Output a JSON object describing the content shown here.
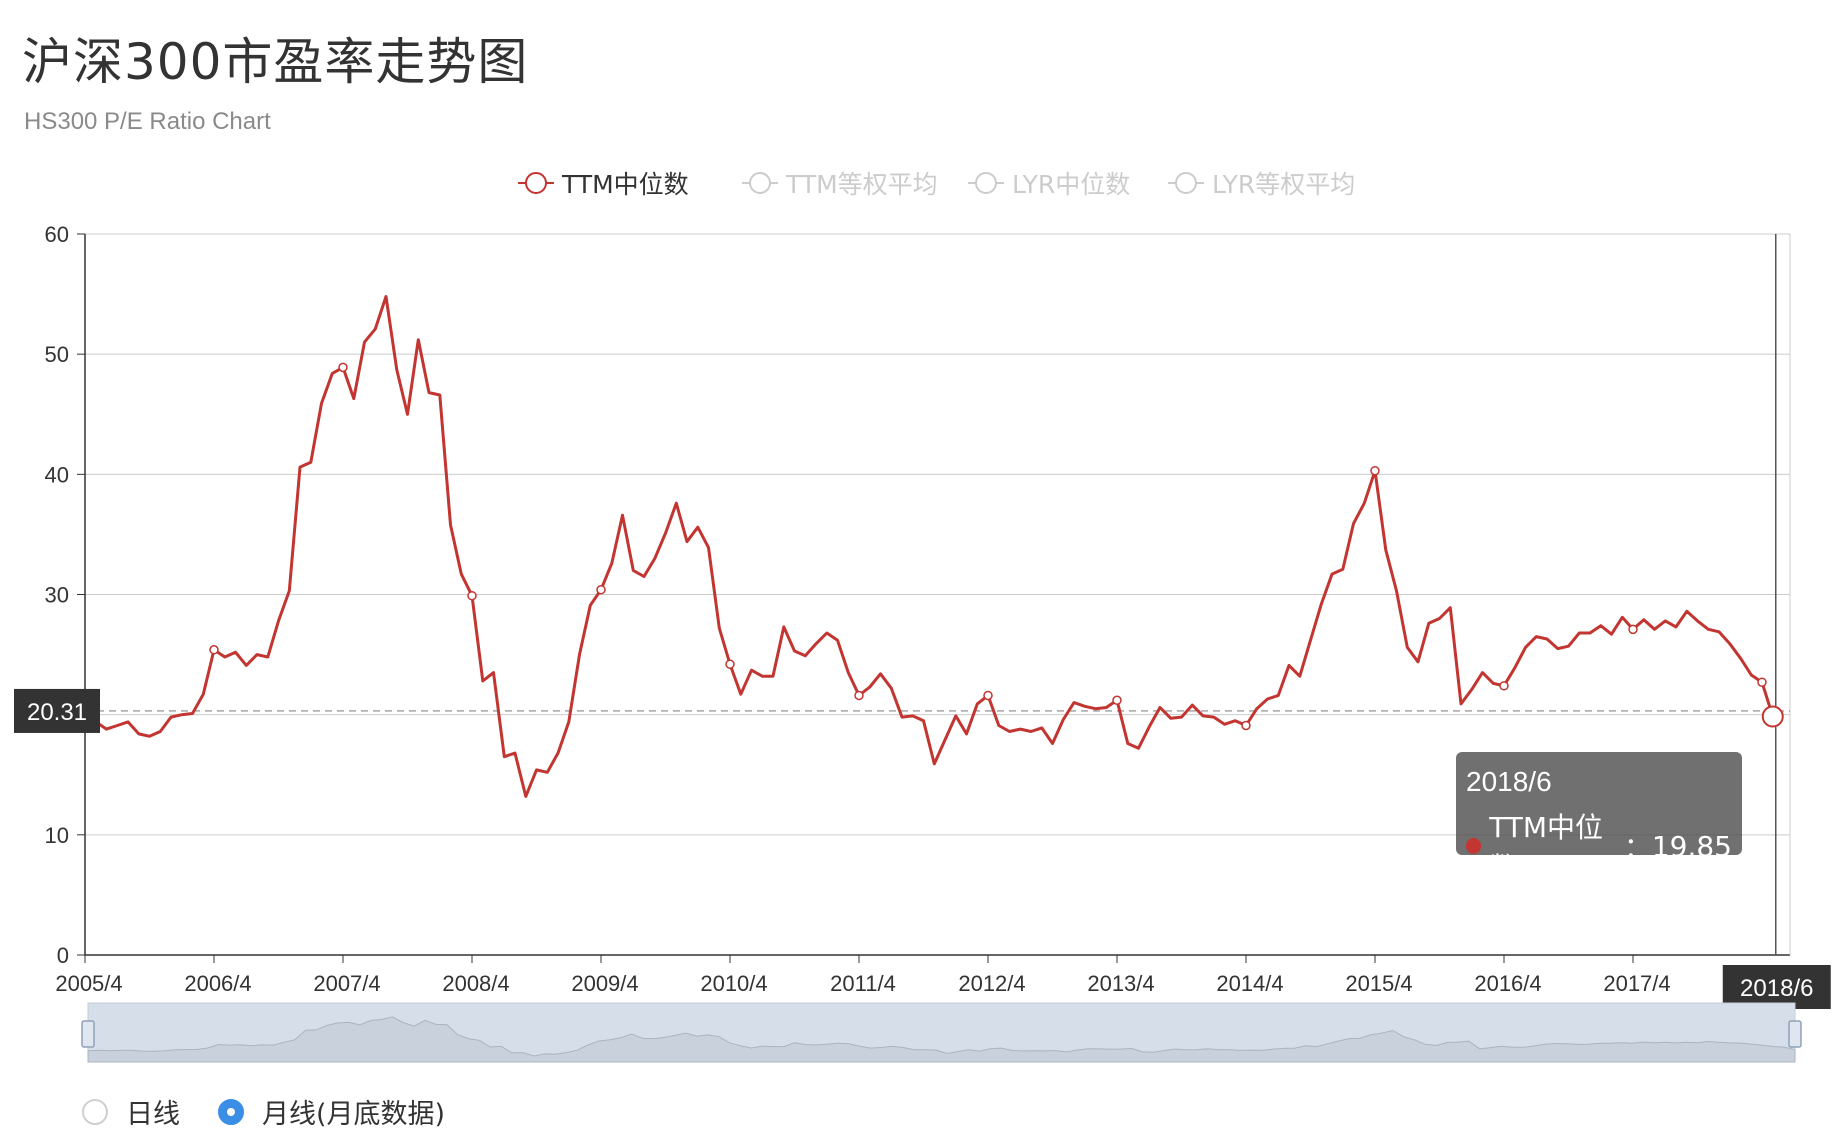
{
  "header": {
    "title": "沪深300市盈率走势图",
    "subtitle": "HS300 P/E Ratio Chart"
  },
  "legend": [
    {
      "name": "TTM中位数",
      "active": true
    },
    {
      "name": "TTM等权平均",
      "active": false
    },
    {
      "name": "LYR中位数",
      "active": false
    },
    {
      "name": "LYR等权平均",
      "active": false
    }
  ],
  "colors": {
    "series": "#c23531",
    "inactive": "#cccccc",
    "grid": "#cccccc",
    "axis": "#333333",
    "dataZoomFill": "#d6deea"
  },
  "axis_pointer": {
    "y_label": "20.31",
    "x_label": "2018/6"
  },
  "tooltip": {
    "date": "2018/6",
    "series": "TTM中位数",
    "separator": "：",
    "value": "19.85"
  },
  "controls": {
    "daily_label": "日线",
    "monthly_label": "月线(月底数据)",
    "selected": "monthly"
  },
  "chart_data": {
    "type": "line",
    "title": "沪深300市盈率走势图",
    "subtitle": "HS300 P/E Ratio Chart",
    "ylim": [
      0,
      60
    ],
    "y_ticks": [
      0,
      10,
      20,
      30,
      40,
      50,
      60
    ],
    "x_ticks": [
      "2005/4",
      "2006/4",
      "2007/4",
      "2008/4",
      "2009/4",
      "2010/4",
      "2011/4",
      "2012/4",
      "2013/4",
      "2014/4",
      "2015/4",
      "2016/4",
      "2017/4"
    ],
    "x_start": "2005/4",
    "x_end": "2018/6",
    "grid": "horizontal",
    "legend_position": "top-center",
    "series": [
      {
        "name": "TTM中位数",
        "values": [
          18.6,
          19.4,
          18.8,
          19.1,
          19.4,
          18.4,
          18.2,
          18.6,
          19.8,
          20.0,
          20.1,
          21.7,
          25.4,
          24.8,
          25.2,
          24.1,
          25.0,
          24.8,
          27.8,
          30.3,
          40.6,
          41.0,
          45.9,
          48.4,
          48.9,
          46.3,
          51.0,
          52.1,
          54.8,
          48.7,
          45.0,
          51.2,
          46.8,
          46.6,
          35.8,
          31.7,
          29.9,
          22.8,
          23.5,
          16.5,
          16.8,
          13.2,
          15.4,
          15.2,
          16.8,
          19.4,
          25.0,
          29.1,
          30.4,
          32.6,
          36.6,
          32.0,
          31.5,
          33.0,
          35.1,
          37.6,
          34.4,
          35.6,
          33.9,
          27.2,
          24.2,
          21.7,
          23.7,
          23.2,
          23.2,
          27.3,
          25.3,
          24.9,
          25.9,
          26.8,
          26.2,
          23.5,
          21.6,
          22.3,
          23.4,
          22.2,
          19.8,
          19.9,
          19.5,
          15.9,
          17.9,
          19.9,
          18.4,
          20.9,
          21.6,
          19.1,
          18.6,
          18.8,
          18.6,
          18.9,
          17.6,
          19.6,
          21.0,
          20.7,
          20.5,
          20.6,
          21.2,
          17.6,
          17.2,
          19.0,
          20.6,
          19.7,
          19.8,
          20.8,
          19.9,
          19.8,
          19.2,
          19.5,
          19.1,
          20.5,
          21.3,
          21.6,
          24.1,
          23.2,
          26.2,
          29.2,
          31.7,
          32.1,
          35.9,
          37.6,
          40.3,
          33.7,
          30.3,
          25.6,
          24.4,
          27.6,
          28.0,
          28.9,
          20.9,
          22.1,
          23.5,
          22.6,
          22.4,
          23.9,
          25.6,
          26.5,
          26.3,
          25.5,
          25.7,
          26.8,
          26.8,
          27.4,
          26.7,
          28.1,
          27.1,
          27.9,
          27.1,
          27.8,
          27.3,
          28.6,
          27.8,
          27.1,
          26.9,
          25.9,
          24.7,
          23.3,
          22.7,
          19.85
        ]
      }
    ]
  }
}
